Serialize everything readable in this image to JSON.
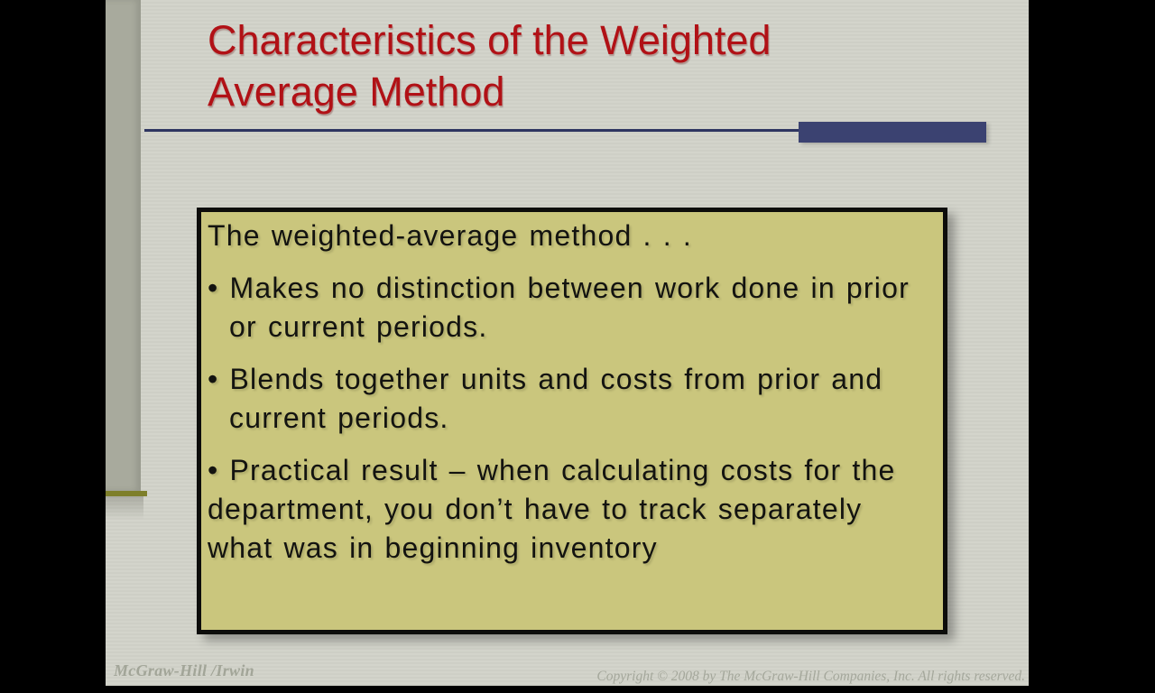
{
  "slide": {
    "title_lines": [
      "Characteristics of the Weighted",
      "Average Method"
    ],
    "box": {
      "bullet_char": "•",
      "intro": "The weighted-average method . . .",
      "bullets": [
        "Makes no distinction between work done in prior or current periods.",
        "Blends together units and costs from prior and current periods.",
        "Practical result – when calculating costs for the department, you don’t have to track separately what was in beginning inventory"
      ]
    },
    "footer": {
      "left": "McGraw-Hill /Irwin",
      "right": "Copyright © 2008 by The McGraw-Hill Companies, Inc. All rights reserved."
    },
    "colors": {
      "background": "#d2d3ca",
      "sidebar_gray": "#a8aa9d",
      "olive_accent": "#7e7f2a",
      "box_background": "#cac67d",
      "box_border": "#0d0d0b",
      "rule_navy": "#2e3560",
      "accent_navy": "#3b4271",
      "title_red": "#b11116",
      "footer_gray": "#a2a598"
    }
  }
}
